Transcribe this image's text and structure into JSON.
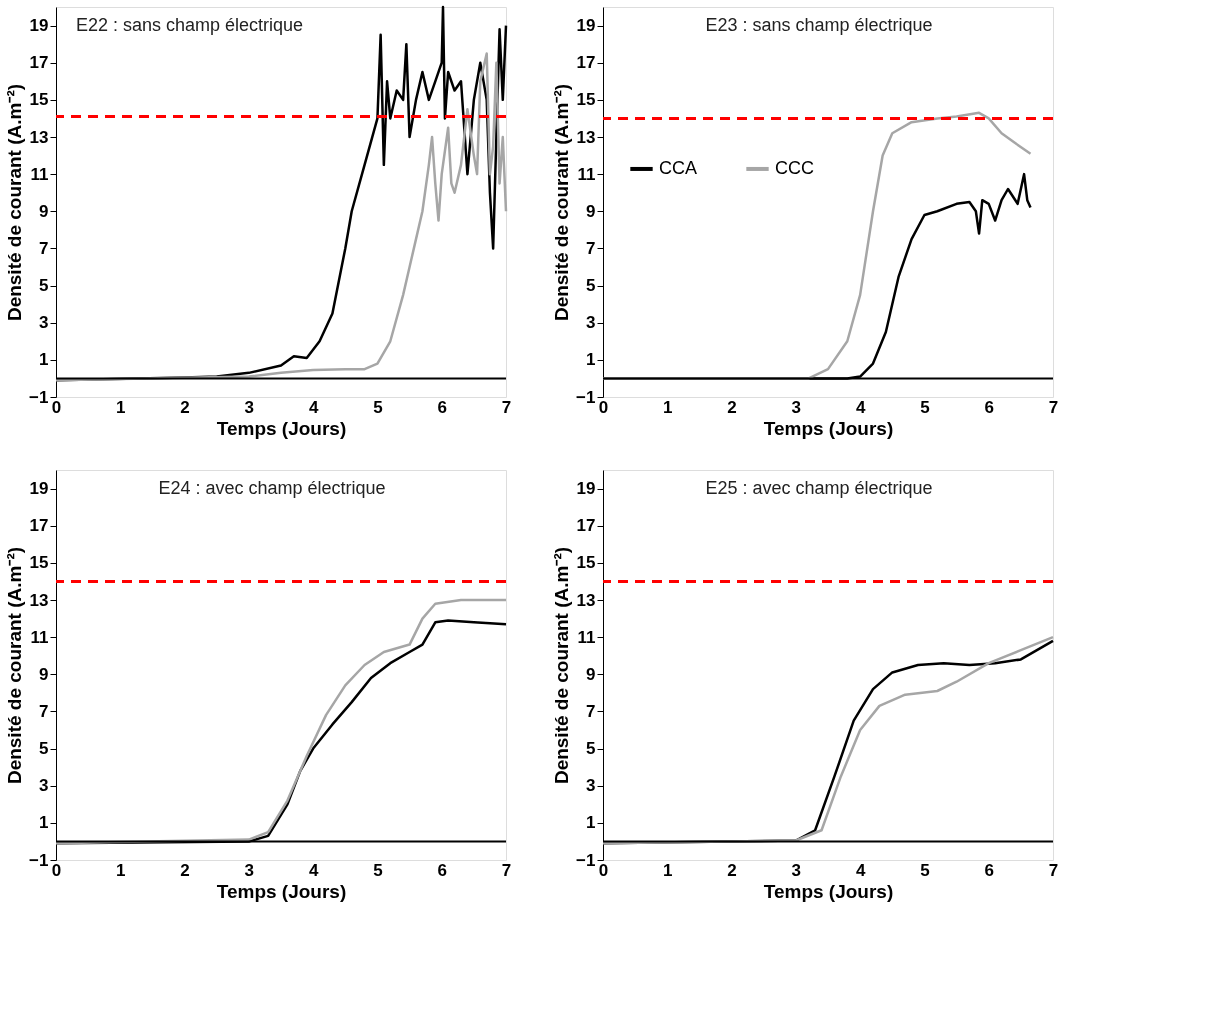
{
  "chart_data": [
    {
      "type": "line",
      "title": "E22 : sans champ électrique",
      "xlabel": "Temps (Jours)",
      "ylabel": "Densité de courant (A.m⁻²)",
      "xlim": [
        0,
        7
      ],
      "ylim": [
        -1,
        20
      ],
      "xticks": [
        0,
        1,
        2,
        3,
        4,
        5,
        6,
        7
      ],
      "yticks": [
        -1,
        1,
        3,
        5,
        7,
        9,
        11,
        13,
        15,
        17,
        19
      ],
      "grid": false,
      "legend": false,
      "ref_lines": [
        {
          "axis": "y",
          "value": 14.1,
          "color": "#ff0000",
          "line_style": "dashed"
        },
        {
          "axis": "y",
          "value": 0,
          "color": "#000000",
          "line_style": "solid"
        }
      ],
      "series": [
        {
          "color": "#000000",
          "x": [
            0,
            2,
            2.5,
            3,
            3.5,
            3.7,
            3.9,
            4.1,
            4.3,
            4.5,
            4.6,
            4.8,
            5.0,
            5.05,
            5.1,
            5.15,
            5.2,
            5.3,
            5.4,
            5.45,
            5.5,
            5.6,
            5.7,
            5.8,
            5.9,
            6.0,
            6.02,
            6.05,
            6.1,
            6.2,
            6.3,
            6.4,
            6.5,
            6.6,
            6.7,
            6.75,
            6.8,
            6.85,
            6.9,
            6.95,
            7.0
          ],
          "values": [
            -0.1,
            0.05,
            0.1,
            0.3,
            0.7,
            1.2,
            1.1,
            2,
            3.5,
            7,
            9,
            11.5,
            14,
            18.5,
            11.5,
            16,
            14,
            15.5,
            15,
            18,
            13,
            15,
            16.5,
            15,
            16,
            17,
            20,
            14,
            16.5,
            15.5,
            16,
            11,
            15,
            17,
            15,
            10,
            7,
            13,
            18.8,
            15,
            19
          ]
        },
        {
          "color": "#a6a6a6",
          "x": [
            0,
            3,
            3.5,
            4,
            4.5,
            4.8,
            5.0,
            5.2,
            5.4,
            5.5,
            5.6,
            5.7,
            5.8,
            5.85,
            5.9,
            5.95,
            6.0,
            6.1,
            6.15,
            6.2,
            6.3,
            6.4,
            6.5,
            6.55,
            6.6,
            6.7,
            6.75,
            6.8,
            6.85,
            6.9,
            6.95,
            7.0
          ],
          "values": [
            -0.1,
            0.1,
            0.3,
            0.45,
            0.5,
            0.5,
            0.8,
            2,
            4.5,
            6,
            7.5,
            9,
            11.5,
            13,
            10.5,
            8.5,
            11,
            13.5,
            10.5,
            10,
            11.5,
            14.5,
            12,
            11,
            16,
            17.5,
            11,
            12.5,
            17,
            10.5,
            13,
            9
          ]
        }
      ]
    },
    {
      "type": "line",
      "title": "E23 : sans champ électrique",
      "xlabel": "Temps (Jours)",
      "ylabel": "Densité de courant (A.m⁻²)",
      "xlim": [
        0,
        7
      ],
      "ylim": [
        -1,
        20
      ],
      "xticks": [
        0,
        1,
        2,
        3,
        4,
        5,
        6,
        7
      ],
      "yticks": [
        -1,
        1,
        3,
        5,
        7,
        9,
        11,
        13,
        15,
        17,
        19
      ],
      "grid": false,
      "legend": "left",
      "ref_lines": [
        {
          "axis": "y",
          "value": 14,
          "color": "#ff0000",
          "line_style": "dashed"
        },
        {
          "axis": "y",
          "value": 0,
          "color": "#000000",
          "line_style": "solid"
        }
      ],
      "series": [
        {
          "name": "CCA",
          "color": "#000000",
          "x": [
            0,
            3.8,
            4.0,
            4.2,
            4.4,
            4.6,
            4.8,
            5.0,
            5.2,
            5.5,
            5.7,
            5.8,
            5.85,
            5.9,
            6.0,
            6.1,
            6.2,
            6.3,
            6.45,
            6.55,
            6.6,
            6.65
          ],
          "values": [
            0,
            0,
            0.1,
            0.8,
            2.5,
            5.5,
            7.5,
            8.8,
            9.0,
            9.4,
            9.5,
            9.0,
            7.8,
            9.6,
            9.4,
            8.5,
            9.6,
            10.2,
            9.4,
            11,
            9.6,
            9.2
          ]
        },
        {
          "name": "CCC",
          "color": "#a6a6a6",
          "x": [
            0,
            3.2,
            3.5,
            3.8,
            4.0,
            4.2,
            4.35,
            4.5,
            4.8,
            5.2,
            5.5,
            5.85,
            6.0,
            6.2,
            6.4,
            6.65
          ],
          "values": [
            0,
            0,
            0.5,
            2,
            4.5,
            9,
            12,
            13.2,
            13.8,
            14.0,
            14.1,
            14.3,
            14.0,
            13.2,
            12.7,
            12.1
          ]
        }
      ]
    },
    {
      "type": "line",
      "title": "E24 : avec champ électrique",
      "xlabel": "Temps (Jours)",
      "ylabel": "Densité de courant (A.m⁻²)",
      "xlim": [
        0,
        7
      ],
      "ylim": [
        -1,
        20
      ],
      "xticks": [
        0,
        1,
        2,
        3,
        4,
        5,
        6,
        7
      ],
      "yticks": [
        -1,
        1,
        3,
        5,
        7,
        9,
        11,
        13,
        15,
        17,
        19
      ],
      "grid": false,
      "legend": false,
      "ref_lines": [
        {
          "axis": "y",
          "value": 14,
          "color": "#ff0000",
          "line_style": "dashed"
        },
        {
          "axis": "y",
          "value": 0,
          "color": "#000000",
          "line_style": "solid"
        }
      ],
      "series": [
        {
          "color": "#000000",
          "x": [
            0,
            3,
            3.3,
            3.6,
            3.8,
            4.0,
            4.3,
            4.6,
            4.9,
            5.2,
            5.5,
            5.7,
            5.9,
            6.1,
            6.5,
            7.0
          ],
          "values": [
            -0.1,
            0,
            0.3,
            2,
            3.8,
            5,
            6.3,
            7.5,
            8.8,
            9.6,
            10.2,
            10.6,
            11.8,
            11.9,
            11.8,
            11.7
          ]
        },
        {
          "color": "#a6a6a6",
          "x": [
            0,
            3,
            3.3,
            3.6,
            3.9,
            4.2,
            4.5,
            4.8,
            5.1,
            5.5,
            5.7,
            5.9,
            6.3,
            7.0
          ],
          "values": [
            -0.1,
            0.1,
            0.5,
            2.2,
            4.6,
            6.8,
            8.4,
            9.5,
            10.2,
            10.6,
            12.0,
            12.8,
            13.0,
            13.0
          ]
        }
      ]
    },
    {
      "type": "line",
      "title": "E25 : avec champ électrique",
      "xlabel": "Temps (Jours)",
      "ylabel": "Densité de courant (A.m⁻²)",
      "xlim": [
        0,
        7
      ],
      "ylim": [
        -1,
        20
      ],
      "xticks": [
        0,
        1,
        2,
        3,
        4,
        5,
        6,
        7
      ],
      "yticks": [
        -1,
        1,
        3,
        5,
        7,
        9,
        11,
        13,
        15,
        17,
        19
      ],
      "grid": false,
      "legend": false,
      "ref_lines": [
        {
          "axis": "y",
          "value": 14,
          "color": "#ff0000",
          "line_style": "dashed"
        },
        {
          "axis": "y",
          "value": 0,
          "color": "#000000",
          "line_style": "solid"
        }
      ],
      "series": [
        {
          "color": "#000000",
          "x": [
            0,
            3,
            3.3,
            3.6,
            3.9,
            4.2,
            4.5,
            4.9,
            5.3,
            5.7,
            6.1,
            6.5,
            7.0
          ],
          "values": [
            -0.1,
            0.05,
            0.6,
            3.5,
            6.5,
            8.2,
            9.1,
            9.5,
            9.6,
            9.5,
            9.6,
            9.8,
            10.8
          ]
        },
        {
          "color": "#a6a6a6",
          "x": [
            0,
            3,
            3.4,
            3.7,
            4.0,
            4.3,
            4.7,
            5.2,
            5.5,
            6.0,
            6.5,
            7.0
          ],
          "values": [
            -0.1,
            0.05,
            0.6,
            3.5,
            6.0,
            7.3,
            7.9,
            8.1,
            8.6,
            9.6,
            10.3,
            11.0
          ]
        }
      ]
    }
  ]
}
